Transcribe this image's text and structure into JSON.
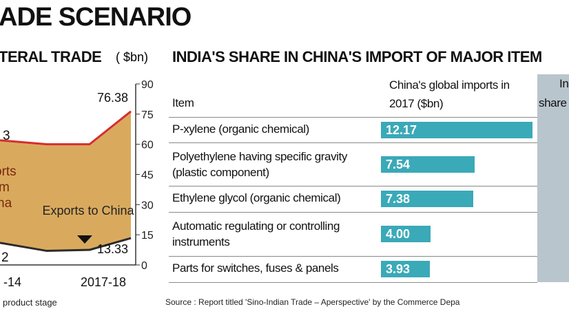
{
  "title": "ADE SCENARIO",
  "footnote": "product stage",
  "source": "Source : Report titled 'Sino-Indian Trade – Aperspective' by the Commerce Depa",
  "chart_data": [
    {
      "type": "area",
      "title": "TERAL TRADE",
      "unit": "( $bn)",
      "categories": [
        "-14",
        null,
        null,
        "2017-18"
      ],
      "series": [
        {
          "color": "#d62d2d",
          "values": [
            62,
            60,
            60,
            76.38
          ]
        },
        {
          "name": "Exports to China",
          "color": "#2b2b2b",
          "values": [
            11,
            7,
            7.5,
            13.33
          ]
        }
      ],
      "fill_color": "#d9aa5e",
      "annotations": [
        "3",
        "orts",
        "m",
        "na",
        "2"
      ],
      "ylim": [
        0,
        90
      ],
      "yticks": [
        0,
        15,
        30,
        45,
        60,
        75,
        90
      ]
    },
    {
      "type": "bar",
      "title": "INDIA'S SHARE IN CHINA'S IMPORT OF MAJOR ITEM",
      "column_headers": [
        "Item",
        "China's global imports in 2017 ($bn)",
        "In",
        "share"
      ],
      "categories": [
        "P-xylene (organic chemical)",
        "Polyethylene having specific gravity (plastic component)",
        "Ethylene glycol (organic chemical)",
        "Automatic regulating or controlling instruments",
        "Parts for switches, fuses & panels"
      ],
      "values": [
        12.17,
        7.54,
        7.38,
        4,
        3.93
      ],
      "value_labels": [
        "12.17",
        "7.54",
        "7.38",
        "4.00",
        "3.93"
      ],
      "color": "#3aa9b8"
    }
  ]
}
